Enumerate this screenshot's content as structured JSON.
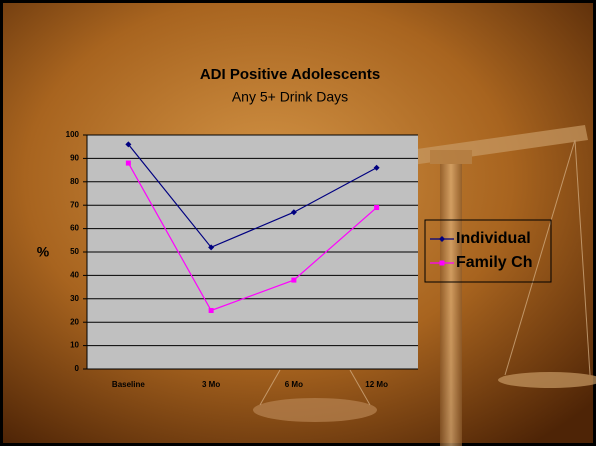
{
  "chart_data": {
    "type": "line",
    "title": "ADI Positive Adolescents",
    "subtitle": "Any 5+ Drink Days",
    "y_label": "%",
    "categories": [
      "Baseline",
      "3 Mo",
      "6 Mo",
      "12 Mo"
    ],
    "series": [
      {
        "name": "Individual",
        "color": "#000080",
        "marker": "diamond",
        "values": [
          96,
          52,
          67,
          86
        ]
      },
      {
        "name": "Family Ch",
        "color": "#ff00ff",
        "marker": "square",
        "values": [
          88,
          25,
          38,
          69
        ]
      }
    ],
    "ylim": [
      0,
      100
    ],
    "yticks": [
      0,
      10,
      20,
      30,
      40,
      50,
      60,
      70,
      80,
      90,
      100
    ],
    "grid": true,
    "legend": "right"
  }
}
